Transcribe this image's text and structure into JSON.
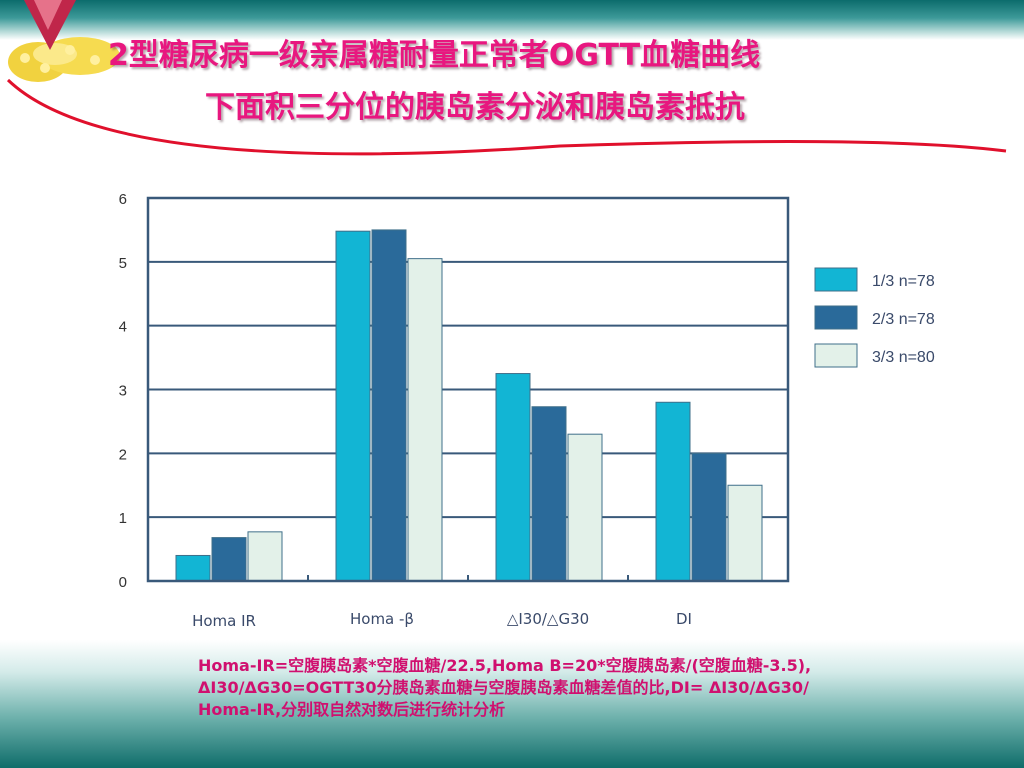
{
  "slide": {
    "title_line1": "2型糖尿病一级亲属糖耐量正常者OGTT血糖曲线",
    "title_line2": "下面积三分位的胰岛素分泌和胰岛素抵抗",
    "note": "Homa-IR=空腹胰岛素*空腹血糖/22.5,Homa B=20*空腹胰岛素/(空腹血糖-3.5), ΔI30/ΔG30=OGTT30分胰岛素血糖与空腹胰岛素血糖差值的比,DI= ΔI30/ΔG30/ Homa-IR,分别取自然对数后进行统计分析"
  },
  "colors": {
    "title": "#e8177f",
    "note": "#d0106f",
    "axis": "#39597a",
    "series": [
      "#12b5d4",
      "#2a6a9a",
      "#e3f1e9"
    ]
  },
  "chart_data": {
    "type": "bar",
    "title": "",
    "xlabel": "",
    "ylabel": "",
    "ylim": [
      0,
      6
    ],
    "yticks": [
      "0",
      "1",
      "2",
      "3",
      "4",
      "5",
      "6"
    ],
    "grid": true,
    "legend_position": "right",
    "categories": [
      "Homa IR",
      "Homa -β",
      "△I30/△G30",
      "DI"
    ],
    "series": [
      {
        "name": "1/3 n=78",
        "values": [
          0.4,
          5.48,
          3.25,
          2.8
        ]
      },
      {
        "name": "2/3 n=78",
        "values": [
          0.68,
          5.5,
          2.73,
          2.0
        ]
      },
      {
        "name": "3/3 n=80",
        "values": [
          0.77,
          5.05,
          2.3,
          1.5
        ]
      }
    ]
  }
}
